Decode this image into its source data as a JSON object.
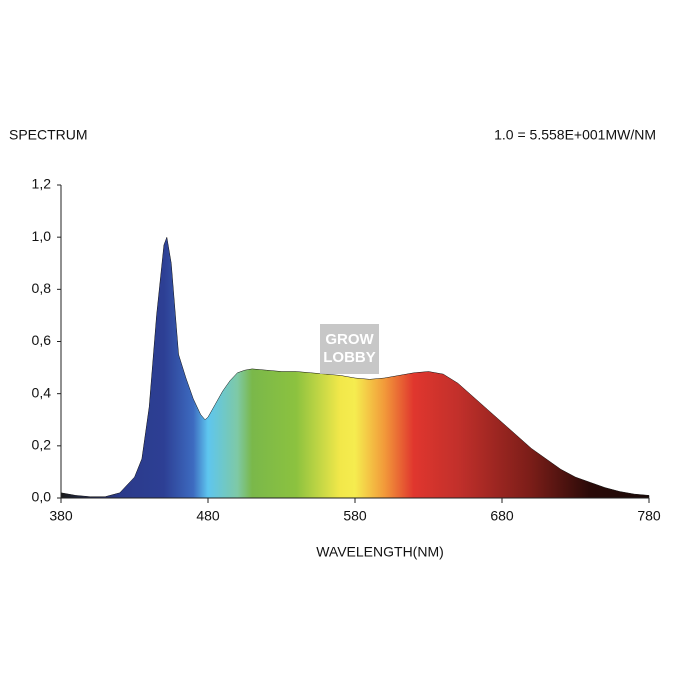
{
  "chart_data": {
    "type": "area",
    "title": "SPECTRUM",
    "subtitle": "1.0 = 5.558E+001MW/NM",
    "x_label": "WAVELENGTH(NM)",
    "watermark": [
      "GROW",
      "LOBBY"
    ],
    "x": [
      380,
      390,
      400,
      410,
      420,
      430,
      435,
      440,
      445,
      450,
      452,
      455,
      460,
      465,
      470,
      475,
      478,
      480,
      485,
      490,
      495,
      500,
      505,
      510,
      520,
      530,
      540,
      550,
      560,
      570,
      580,
      590,
      600,
      610,
      620,
      630,
      640,
      650,
      660,
      670,
      680,
      690,
      700,
      710,
      720,
      730,
      740,
      750,
      760,
      770,
      780
    ],
    "values": [
      0.02,
      0.01,
      0.005,
      0.005,
      0.02,
      0.08,
      0.15,
      0.35,
      0.7,
      0.97,
      1.0,
      0.9,
      0.55,
      0.46,
      0.38,
      0.32,
      0.3,
      0.31,
      0.36,
      0.41,
      0.45,
      0.48,
      0.49,
      0.495,
      0.49,
      0.485,
      0.485,
      0.48,
      0.475,
      0.47,
      0.46,
      0.455,
      0.46,
      0.47,
      0.48,
      0.485,
      0.475,
      0.44,
      0.39,
      0.34,
      0.29,
      0.24,
      0.19,
      0.15,
      0.11,
      0.08,
      0.06,
      0.04,
      0.025,
      0.015,
      0.01
    ],
    "xlim": [
      380,
      780
    ],
    "xticks": [
      380,
      480,
      580,
      680,
      780
    ],
    "ylim": [
      0,
      1.2
    ],
    "yticks": [
      {
        "value": 0,
        "label": "0,0"
      },
      {
        "value": 0.2,
        "label": "0,2"
      },
      {
        "value": 0.4,
        "label": "0,4"
      },
      {
        "value": 0.6,
        "label": "0,6"
      },
      {
        "value": 0.8,
        "label": "0,8"
      },
      {
        "value": 1.0,
        "label": "1,0"
      },
      {
        "value": 1.2,
        "label": "1,2"
      }
    ],
    "grid": false
  }
}
